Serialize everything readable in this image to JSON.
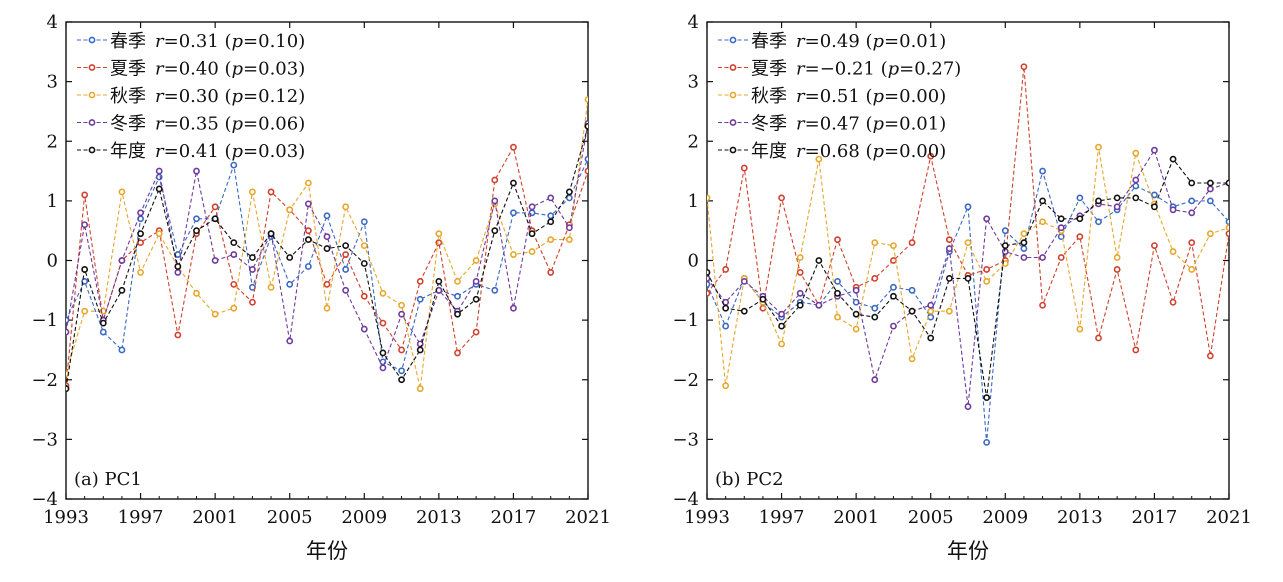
{
  "chart_data": [
    {
      "type": "line",
      "panel_label": "(a) PC1",
      "xlabel": "年份",
      "ylabel": "",
      "xlim": [
        1993,
        2021
      ],
      "ylim": [
        -4,
        4
      ],
      "x_ticks": [
        1993,
        1997,
        2001,
        2005,
        2009,
        2013,
        2017,
        2021
      ],
      "y_ticks": [
        -4,
        -3,
        -2,
        -1,
        0,
        1,
        2,
        3,
        4
      ],
      "y_tick_labels": [
        "−4",
        "−3",
        "−2",
        "−1",
        "0",
        "1",
        "2",
        "3",
        "4"
      ],
      "legend_position": "top-left",
      "x": [
        1993,
        1994,
        1995,
        1996,
        1997,
        1998,
        1999,
        2000,
        2001,
        2002,
        2003,
        2004,
        2005,
        2006,
        2007,
        2008,
        2009,
        2010,
        2011,
        2012,
        2013,
        2014,
        2015,
        2016,
        2017,
        2018,
        2019,
        2020,
        2021
      ],
      "series": [
        {
          "name": "春季",
          "stat": "r=0.31 (p=0.10)",
          "r_value": "0.31",
          "p_value": "0.10",
          "color": "#3a68c4",
          "values": [
            -1.0,
            -0.35,
            -1.2,
            -1.5,
            0.7,
            1.4,
            0.1,
            0.7,
            0.7,
            1.6,
            -0.45,
            0.4,
            -0.4,
            -0.1,
            0.75,
            -0.15,
            0.65,
            -1.7,
            -1.85,
            -0.65,
            -0.5,
            -0.6,
            -0.4,
            -0.5,
            0.8,
            0.8,
            0.75,
            1.05,
            1.7
          ]
        },
        {
          "name": "夏季",
          "stat": "r=0.40 (p=0.03)",
          "r_value": "0.40",
          "p_value": "0.03",
          "color": "#d1402d",
          "values": [
            -2.1,
            1.1,
            -1.0,
            0.0,
            0.3,
            0.5,
            -1.25,
            0.45,
            0.9,
            -0.4,
            -0.7,
            1.15,
            0.85,
            0.5,
            -0.4,
            0.1,
            -0.6,
            -1.05,
            -1.5,
            -0.35,
            0.3,
            -1.55,
            -1.2,
            1.35,
            1.9,
            0.5,
            -0.2,
            0.6,
            1.5
          ]
        },
        {
          "name": "秋季",
          "stat": "r=0.30 (p=0.12)",
          "r_value": "0.30",
          "p_value": "0.12",
          "color": "#e8a72b",
          "values": [
            -1.9,
            -0.85,
            -0.85,
            1.15,
            -0.2,
            0.45,
            -0.1,
            -0.55,
            -0.9,
            -0.8,
            1.15,
            -0.45,
            0.85,
            1.3,
            -0.8,
            0.9,
            0.25,
            -0.55,
            -0.75,
            -2.15,
            0.45,
            -0.35,
            0.0,
            0.95,
            0.1,
            0.15,
            0.35,
            0.35,
            2.7
          ]
        },
        {
          "name": "冬季",
          "stat": "r=0.35 (p=0.06)",
          "r_value": "0.35",
          "p_value": "0.06",
          "color": "#6f3a9e",
          "values": [
            -1.2,
            0.6,
            -1.0,
            0.0,
            0.8,
            1.5,
            -0.2,
            1.5,
            0.0,
            0.1,
            -0.15,
            0.45,
            -1.35,
            0.95,
            0.4,
            -0.5,
            -1.15,
            -1.8,
            -0.9,
            -1.4,
            -0.5,
            -0.85,
            -0.35,
            1.0,
            -0.8,
            0.9,
            1.05,
            0.55,
            2.3
          ]
        },
        {
          "name": "年度",
          "stat": "r=0.41 (p=0.03)",
          "r_value": "0.41",
          "p_value": "0.03",
          "color": "#111111",
          "values": [
            -2.15,
            -0.15,
            -1.05,
            -0.5,
            0.45,
            1.2,
            -0.1,
            0.5,
            0.7,
            0.3,
            0.05,
            0.45,
            0.05,
            0.35,
            0.2,
            0.25,
            -0.05,
            -1.55,
            -2.0,
            -1.5,
            -0.35,
            -0.9,
            -0.65,
            0.5,
            1.3,
            0.45,
            0.65,
            1.15,
            2.25
          ]
        }
      ]
    },
    {
      "type": "line",
      "panel_label": "(b) PC2",
      "xlabel": "年份",
      "ylabel": "",
      "xlim": [
        1993,
        2021
      ],
      "ylim": [
        -4,
        4
      ],
      "x_ticks": [
        1993,
        1997,
        2001,
        2005,
        2009,
        2013,
        2017,
        2021
      ],
      "y_ticks": [
        -4,
        -3,
        -2,
        -1,
        0,
        1,
        2,
        3,
        4
      ],
      "y_tick_labels": [
        "−4",
        "−3",
        "−2",
        "−1",
        "0",
        "1",
        "2",
        "3",
        "4"
      ],
      "legend_position": "top-left",
      "x": [
        1993,
        1994,
        1995,
        1996,
        1997,
        1998,
        1999,
        2000,
        2001,
        2002,
        2003,
        2004,
        2005,
        2006,
        2007,
        2008,
        2009,
        2010,
        2011,
        2012,
        2013,
        2014,
        2015,
        2016,
        2017,
        2018,
        2019,
        2020,
        2021
      ],
      "series": [
        {
          "name": "春季",
          "stat": "r=0.49 (p=0.01)",
          "r_value": "0.49",
          "p_value": "0.01",
          "color": "#3a68c4",
          "values": [
            -0.4,
            -1.1,
            -0.3,
            -0.7,
            -0.95,
            -0.7,
            -0.75,
            -0.35,
            -0.7,
            -0.8,
            -0.45,
            -0.5,
            -0.95,
            0.15,
            0.9,
            -3.05,
            0.5,
            0.2,
            1.5,
            0.4,
            1.05,
            0.65,
            0.85,
            1.25,
            1.1,
            0.9,
            1.0,
            1.0,
            0.65
          ]
        },
        {
          "name": "夏季",
          "stat": "r=−0.21 (p=0.27)",
          "r_value": "−0.21",
          "p_value": "0.27",
          "color": "#d1402d",
          "values": [
            -0.55,
            -0.15,
            1.55,
            -0.8,
            1.05,
            -0.2,
            -0.75,
            0.35,
            -0.45,
            -0.3,
            0.0,
            0.3,
            1.75,
            0.35,
            -0.25,
            -0.15,
            0.0,
            3.25,
            -0.75,
            0.05,
            0.4,
            -1.3,
            -0.15,
            -1.5,
            0.25,
            -0.7,
            0.3,
            -1.6,
            0.45
          ]
        },
        {
          "name": "秋季",
          "stat": "r=0.51 (p=0.00)",
          "r_value": "0.51",
          "p_value": "0.00",
          "color": "#e8a72b",
          "values": [
            1.05,
            -2.1,
            -0.3,
            -0.7,
            -1.4,
            0.05,
            1.7,
            -0.95,
            -1.15,
            0.3,
            0.25,
            -1.65,
            -0.85,
            -0.85,
            0.3,
            -0.35,
            -0.05,
            0.45,
            0.65,
            0.5,
            -1.15,
            1.9,
            0.05,
            1.8,
            0.95,
            0.15,
            -0.15,
            0.45,
            0.55
          ]
        },
        {
          "name": "冬季",
          "stat": "r=0.47 (p=0.01)",
          "r_value": "0.47",
          "p_value": "0.01",
          "color": "#6f3a9e",
          "values": [
            -0.3,
            -0.7,
            -0.35,
            -0.6,
            -0.9,
            -0.55,
            -0.75,
            -0.6,
            -0.5,
            -2.0,
            -1.1,
            -0.85,
            -0.75,
            0.2,
            -2.45,
            0.7,
            0.15,
            0.05,
            0.05,
            0.55,
            0.75,
            0.95,
            0.9,
            1.35,
            1.85,
            0.85,
            0.8,
            1.2,
            1.3
          ]
        },
        {
          "name": "年度",
          "stat": "r=0.68 (p=0.00)",
          "r_value": "0.68",
          "p_value": "0.00",
          "color": "#111111",
          "values": [
            -0.2,
            -0.8,
            -0.85,
            -0.65,
            -1.1,
            -0.75,
            0.0,
            -0.55,
            -0.9,
            -0.95,
            -0.6,
            -0.85,
            -1.3,
            -0.3,
            -0.3,
            -2.3,
            0.25,
            0.3,
            1.0,
            0.7,
            0.7,
            1.0,
            1.05,
            1.05,
            0.9,
            1.7,
            1.3,
            1.3,
            1.3
          ]
        }
      ]
    }
  ]
}
